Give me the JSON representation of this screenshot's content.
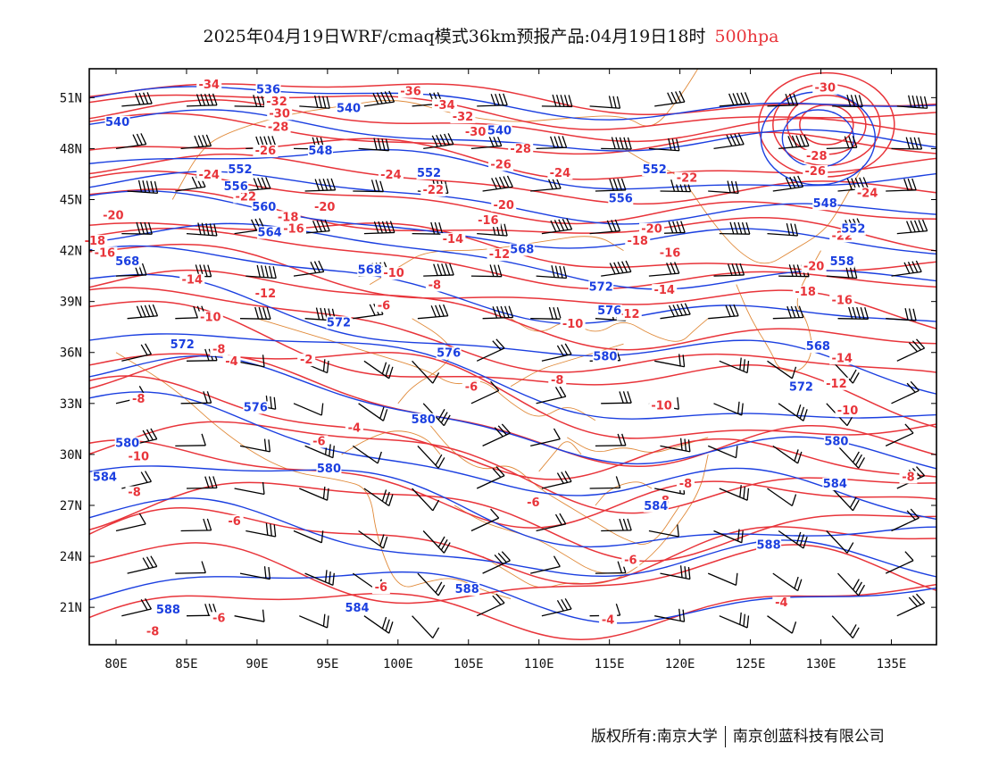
{
  "title": {
    "main": "2025年04月19日WRF/cmaq模式36km预报产品:04月19日18时",
    "level": "500hpa"
  },
  "axes": {
    "lat_labels": [
      "51N",
      "48N",
      "45N",
      "42N",
      "39N",
      "36N",
      "33N",
      "30N",
      "27N",
      "24N",
      "21N"
    ],
    "lat_values": [
      51,
      48,
      45,
      42,
      39,
      36,
      33,
      30,
      27,
      24,
      21
    ],
    "lon_labels": [
      "80E",
      "85E",
      "90E",
      "95E",
      "100E",
      "105E",
      "110E",
      "115E",
      "120E",
      "125E",
      "130E",
      "135E"
    ],
    "lon_values": [
      80,
      85,
      90,
      95,
      100,
      105,
      110,
      115,
      120,
      125,
      130,
      135
    ],
    "lat_range": [
      18.8,
      52.7
    ],
    "lon_range": [
      78.1,
      138.2
    ]
  },
  "colors": {
    "temperature": "#e8343a",
    "geopotential": "#1b3fe0",
    "border": "#e08a3a",
    "wind": "#000000"
  },
  "geopotential_labels": [
    {
      "text": "536",
      "lon": 90.8,
      "lat": 51.3
    },
    {
      "text": "540",
      "lon": 80.1,
      "lat": 49.4
    },
    {
      "text": "540",
      "lon": 96.5,
      "lat": 50.2
    },
    {
      "text": "548",
      "lon": 94.5,
      "lat": 47.7
    },
    {
      "text": "540",
      "lon": 107.2,
      "lat": 48.9
    },
    {
      "text": "552",
      "lon": 88.8,
      "lat": 46.6
    },
    {
      "text": "556",
      "lon": 88.5,
      "lat": 45.6
    },
    {
      "text": "560",
      "lon": 90.5,
      "lat": 44.4
    },
    {
      "text": "552",
      "lon": 102.2,
      "lat": 46.4
    },
    {
      "text": "556",
      "lon": 115.8,
      "lat": 44.9
    },
    {
      "text": "552",
      "lon": 118.2,
      "lat": 46.6
    },
    {
      "text": "564",
      "lon": 90.9,
      "lat": 42.9
    },
    {
      "text": "568",
      "lon": 80.8,
      "lat": 41.2
    },
    {
      "text": "568",
      "lon": 98.0,
      "lat": 40.7
    },
    {
      "text": "568",
      "lon": 108.8,
      "lat": 41.9
    },
    {
      "text": "572",
      "lon": 114.4,
      "lat": 39.7
    },
    {
      "text": "576",
      "lon": 115.0,
      "lat": 38.3
    },
    {
      "text": "572",
      "lon": 95.8,
      "lat": 37.6
    },
    {
      "text": "572",
      "lon": 84.7,
      "lat": 36.3
    },
    {
      "text": "576",
      "lon": 103.6,
      "lat": 35.8
    },
    {
      "text": "576",
      "lon": 89.9,
      "lat": 32.6
    },
    {
      "text": "580",
      "lon": 114.7,
      "lat": 35.6
    },
    {
      "text": "580",
      "lon": 80.8,
      "lat": 30.5
    },
    {
      "text": "580",
      "lon": 101.8,
      "lat": 31.9
    },
    {
      "text": "580",
      "lon": 95.1,
      "lat": 29.0
    },
    {
      "text": "584",
      "lon": 79.2,
      "lat": 28.5
    },
    {
      "text": "584",
      "lon": 118.3,
      "lat": 26.8
    },
    {
      "text": "584",
      "lon": 131.0,
      "lat": 28.1
    },
    {
      "text": "588",
      "lon": 126.3,
      "lat": 24.5
    },
    {
      "text": "588",
      "lon": 104.9,
      "lat": 21.9
    },
    {
      "text": "588",
      "lon": 83.7,
      "lat": 20.7
    },
    {
      "text": "584",
      "lon": 97.1,
      "lat": 20.8
    },
    {
      "text": "568",
      "lon": 129.8,
      "lat": 36.2
    },
    {
      "text": "572",
      "lon": 128.6,
      "lat": 33.8
    },
    {
      "text": "580",
      "lon": 131.1,
      "lat": 30.6
    },
    {
      "text": "548",
      "lon": 130.3,
      "lat": 44.6
    },
    {
      "text": "552",
      "lon": 132.3,
      "lat": 43.1
    },
    {
      "text": "558",
      "lon": 131.5,
      "lat": 41.2
    }
  ],
  "temperature_labels": [
    {
      "text": "-34",
      "lon": 86.6,
      "lat": 51.6
    },
    {
      "text": "-32",
      "lon": 91.4,
      "lat": 50.6
    },
    {
      "text": "-30",
      "lon": 91.6,
      "lat": 49.9
    },
    {
      "text": "-28",
      "lon": 91.5,
      "lat": 49.1
    },
    {
      "text": "-26",
      "lon": 90.6,
      "lat": 47.7
    },
    {
      "text": "-36",
      "lon": 100.9,
      "lat": 51.2
    },
    {
      "text": "-34",
      "lon": 103.3,
      "lat": 50.4
    },
    {
      "text": "-32",
      "lon": 104.6,
      "lat": 49.7
    },
    {
      "text": "-30",
      "lon": 105.5,
      "lat": 48.8
    },
    {
      "text": "-28",
      "lon": 108.7,
      "lat": 47.8
    },
    {
      "text": "-26",
      "lon": 107.3,
      "lat": 46.9
    },
    {
      "text": "-24",
      "lon": 86.6,
      "lat": 46.3
    },
    {
      "text": "-24",
      "lon": 99.5,
      "lat": 46.3
    },
    {
      "text": "-24",
      "lon": 111.5,
      "lat": 46.4
    },
    {
      "text": "-22",
      "lon": 89.2,
      "lat": 45.0
    },
    {
      "text": "-22",
      "lon": 102.5,
      "lat": 45.4
    },
    {
      "text": "-22",
      "lon": 120.5,
      "lat": 46.1
    },
    {
      "text": "-20",
      "lon": 79.8,
      "lat": 43.9
    },
    {
      "text": "-20",
      "lon": 94.8,
      "lat": 44.4
    },
    {
      "text": "-20",
      "lon": 107.5,
      "lat": 44.5
    },
    {
      "text": "-18",
      "lon": 92.2,
      "lat": 43.8
    },
    {
      "text": "-16",
      "lon": 92.6,
      "lat": 43.1
    },
    {
      "text": "-16",
      "lon": 106.4,
      "lat": 43.6
    },
    {
      "text": "-18",
      "lon": 78.5,
      "lat": 42.4
    },
    {
      "text": "-16",
      "lon": 79.2,
      "lat": 41.7
    },
    {
      "text": "-14",
      "lon": 103.9,
      "lat": 42.5
    },
    {
      "text": "-12",
      "lon": 107.2,
      "lat": 41.6
    },
    {
      "text": "-20",
      "lon": 118.0,
      "lat": 43.1
    },
    {
      "text": "-18",
      "lon": 117.0,
      "lat": 42.4
    },
    {
      "text": "-16",
      "lon": 119.3,
      "lat": 41.7
    },
    {
      "text": "-14",
      "lon": 85.4,
      "lat": 40.1
    },
    {
      "text": "-12",
      "lon": 90.6,
      "lat": 39.3
    },
    {
      "text": "-10",
      "lon": 99.7,
      "lat": 40.5
    },
    {
      "text": "-8",
      "lon": 102.6,
      "lat": 39.8
    },
    {
      "text": "-14",
      "lon": 118.9,
      "lat": 39.5
    },
    {
      "text": "-12",
      "lon": 116.4,
      "lat": 38.1
    },
    {
      "text": "-10",
      "lon": 112.4,
      "lat": 37.5
    },
    {
      "text": "-10",
      "lon": 86.7,
      "lat": 37.9
    },
    {
      "text": "-6",
      "lon": 99.0,
      "lat": 38.6
    },
    {
      "text": "-8",
      "lon": 87.3,
      "lat": 36.0
    },
    {
      "text": "-4",
      "lon": 88.2,
      "lat": 35.3
    },
    {
      "text": "-2",
      "lon": 93.5,
      "lat": 35.4
    },
    {
      "text": "-8",
      "lon": 81.6,
      "lat": 33.1
    },
    {
      "text": "-6",
      "lon": 105.2,
      "lat": 33.8
    },
    {
      "text": "-8",
      "lon": 111.3,
      "lat": 34.2
    },
    {
      "text": "-10",
      "lon": 118.7,
      "lat": 32.7
    },
    {
      "text": "-4",
      "lon": 96.9,
      "lat": 31.4
    },
    {
      "text": "-6",
      "lon": 94.4,
      "lat": 30.6
    },
    {
      "text": "-10",
      "lon": 81.6,
      "lat": 29.7
    },
    {
      "text": "-8",
      "lon": 81.3,
      "lat": 27.6
    },
    {
      "text": "-8",
      "lon": 120.4,
      "lat": 28.1
    },
    {
      "text": "-8",
      "lon": 118.8,
      "lat": 27.1
    },
    {
      "text": "-6",
      "lon": 109.6,
      "lat": 27.0
    },
    {
      "text": "-6",
      "lon": 88.4,
      "lat": 25.9
    },
    {
      "text": "-6",
      "lon": 98.8,
      "lat": 22.0
    },
    {
      "text": "-6",
      "lon": 87.3,
      "lat": 20.2
    },
    {
      "text": "-8",
      "lon": 82.6,
      "lat": 19.4
    },
    {
      "text": "-6",
      "lon": 116.5,
      "lat": 23.6
    },
    {
      "text": "-4",
      "lon": 114.9,
      "lat": 20.1
    },
    {
      "text": "-4",
      "lon": 127.2,
      "lat": 21.1
    },
    {
      "text": "-8",
      "lon": 136.2,
      "lat": 28.5
    },
    {
      "text": "-30",
      "lon": 130.3,
      "lat": 51.4
    },
    {
      "text": "-28",
      "lon": 129.7,
      "lat": 47.4
    },
    {
      "text": "-26",
      "lon": 129.6,
      "lat": 46.5
    },
    {
      "text": "-24",
      "lon": 133.3,
      "lat": 45.2
    },
    {
      "text": "-22",
      "lon": 131.5,
      "lat": 42.7
    },
    {
      "text": "-20",
      "lon": 129.5,
      "lat": 40.9
    },
    {
      "text": "-18",
      "lon": 128.9,
      "lat": 39.4
    },
    {
      "text": "-16",
      "lon": 131.5,
      "lat": 38.9
    },
    {
      "text": "-14",
      "lon": 131.5,
      "lat": 35.5
    },
    {
      "text": "-12",
      "lon": 131.1,
      "lat": 34.0
    },
    {
      "text": "-10",
      "lon": 131.9,
      "lat": 32.4
    }
  ],
  "footer": {
    "left": "版权所有:南京大学",
    "right": "南京创蓝科技有限公司"
  }
}
